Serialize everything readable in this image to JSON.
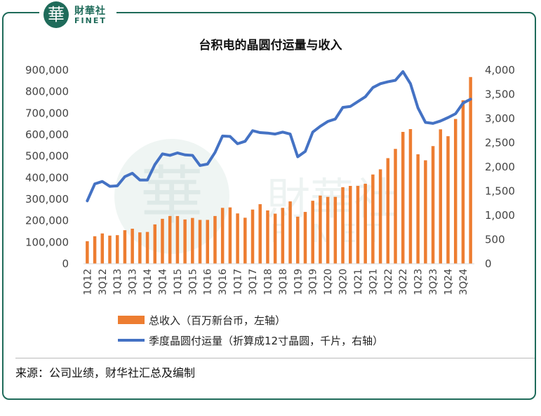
{
  "brand": {
    "logo_char": "華",
    "name_cn": "財華社",
    "name_en": "FINET"
  },
  "watermark": {
    "text_cn": "財華社",
    "text_en": "FINET"
  },
  "source_note": "来源：公司业绩，财华社汇总及编制",
  "colors": {
    "bar": "#ED7D31",
    "line": "#4472C4",
    "frame": "#1f6b5a"
  },
  "chart_data": {
    "type": "bar",
    "title": "台积电的晶圆付运量与收入",
    "x_tick_labels": [
      "1Q12",
      "3Q12",
      "1Q13",
      "3Q13",
      "1Q14",
      "3Q14",
      "1Q15",
      "3Q15",
      "1Q16",
      "3Q16",
      "1Q17",
      "3Q17",
      "1Q18",
      "3Q18",
      "1Q19",
      "3Q19",
      "1Q20",
      "3Q20",
      "1Q21",
      "3Q21",
      "1Q22",
      "3Q22",
      "1Q23",
      "3Q23",
      "1Q24",
      "3Q24"
    ],
    "categories": [
      "1Q12",
      "2Q12",
      "3Q12",
      "4Q12",
      "1Q13",
      "2Q13",
      "3Q13",
      "4Q13",
      "1Q14",
      "2Q14",
      "3Q14",
      "4Q14",
      "1Q15",
      "2Q15",
      "3Q15",
      "4Q15",
      "1Q16",
      "2Q16",
      "3Q16",
      "4Q16",
      "1Q17",
      "2Q17",
      "3Q17",
      "4Q17",
      "1Q18",
      "2Q18",
      "3Q18",
      "4Q18",
      "1Q19",
      "2Q19",
      "3Q19",
      "4Q19",
      "1Q20",
      "2Q20",
      "3Q20",
      "4Q20",
      "1Q21",
      "2Q21",
      "3Q21",
      "4Q21",
      "1Q22",
      "2Q22",
      "3Q22",
      "4Q22",
      "1Q23",
      "2Q23",
      "3Q23",
      "4Q23",
      "1Q24",
      "2Q24",
      "3Q24",
      "4Q24"
    ],
    "y_left": {
      "min": 0,
      "max": 900000,
      "ticks": [
        "0",
        "100,000",
        "200,000",
        "300,000",
        "400,000",
        "500,000",
        "600,000",
        "700,000",
        "800,000",
        "900,000"
      ]
    },
    "y_right": {
      "min": 0,
      "max": 4000,
      "ticks": [
        "0",
        "500",
        "1,000",
        "1,500",
        "2,000",
        "2,500",
        "3,000",
        "3,500",
        "4,000"
      ]
    },
    "series": [
      {
        "name": "总收入（百万新台币，左轴）",
        "type": "bar",
        "axis": "left",
        "values": [
          105000,
          128000,
          141000,
          131000,
          133000,
          156000,
          163000,
          146000,
          148000,
          183000,
          209000,
          222000,
          222000,
          206000,
          213000,
          204000,
          204000,
          222000,
          260000,
          262000,
          234000,
          214000,
          252000,
          277000,
          248000,
          233000,
          260000,
          290000,
          219000,
          241000,
          293000,
          317000,
          311000,
          311000,
          356000,
          362000,
          362000,
          372000,
          415000,
          439000,
          491000,
          534000,
          613000,
          626000,
          509000,
          481000,
          547000,
          625000,
          593000,
          673000,
          760000,
          868000
        ]
      },
      {
        "name": "季度晶圆付运量（折算成12寸晶圆，千片，右轴）",
        "type": "line",
        "axis": "right",
        "values": [
          1300,
          1650,
          1700,
          1600,
          1610,
          1800,
          1870,
          1730,
          1730,
          2050,
          2270,
          2240,
          2290,
          2250,
          2240,
          2030,
          2060,
          2300,
          2640,
          2630,
          2480,
          2530,
          2750,
          2710,
          2700,
          2680,
          2720,
          2680,
          2210,
          2320,
          2720,
          2840,
          2940,
          2990,
          3230,
          3250,
          3350,
          3450,
          3640,
          3720,
          3760,
          3790,
          3970,
          3720,
          3220,
          2920,
          2900,
          2950,
          3020,
          3100,
          3320,
          3400
        ]
      }
    ]
  }
}
